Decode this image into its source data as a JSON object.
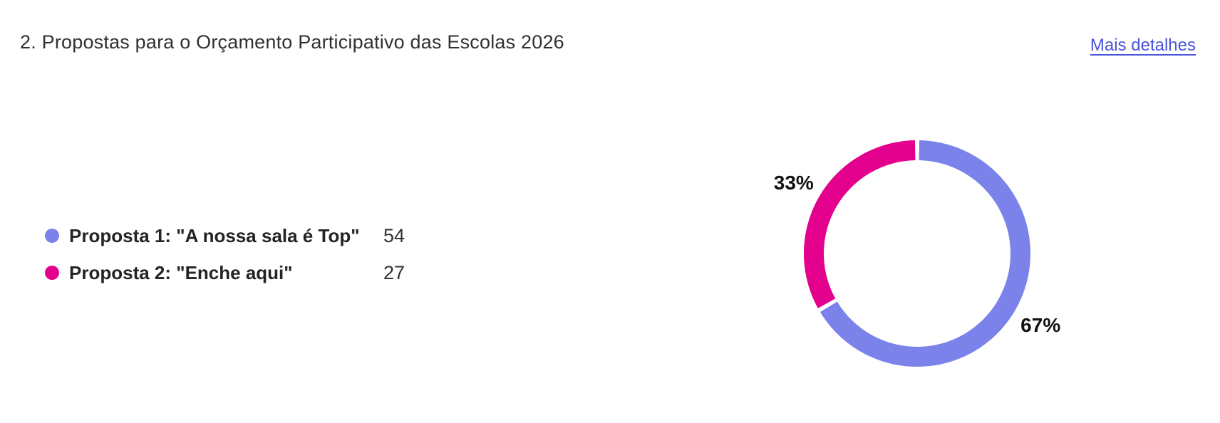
{
  "header": {
    "title": "2. Propostas para o Orçamento Participativo das Escolas 2026",
    "more_details_label": "Mais detalhes",
    "link_color": "#4A54D8"
  },
  "chart_data": {
    "type": "pie",
    "subtype": "donut",
    "title": "2. Propostas para o Orçamento Participativo das Escolas 2026",
    "legend_position": "left",
    "start_angle_deg": 0,
    "direction": "clockwise",
    "series": [
      {
        "label": "Proposta 1: \"A nossa sala é Top\"",
        "value": 54,
        "percent": "67%",
        "color": "#7B83EB"
      },
      {
        "label": "Proposta 2: \"Enche aqui\"",
        "value": 27,
        "percent": "33%",
        "color": "#E3008C"
      }
    ]
  }
}
